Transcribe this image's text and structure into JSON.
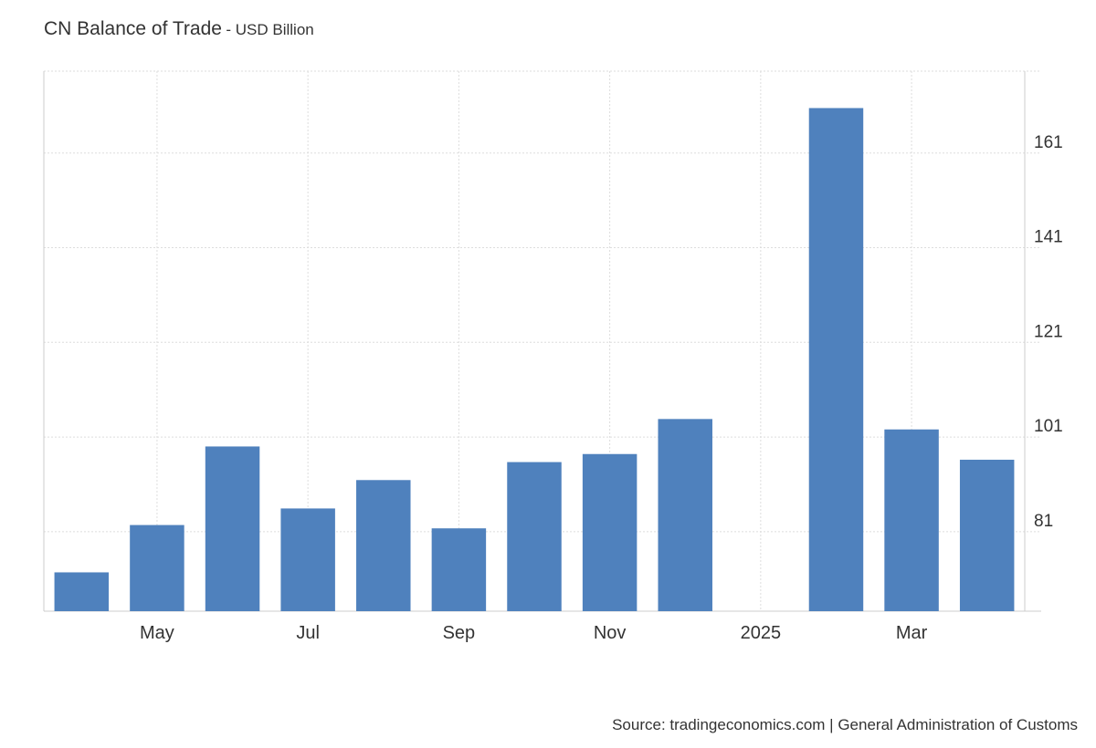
{
  "title": "CN Balance of Trade",
  "subtitle": "- USD Billion",
  "source": "Source: tradingeconomics.com | General Administration of Customs",
  "colors": {
    "bar": "#4f81bd",
    "grid": "#dddddd",
    "axis": "#cccccc",
    "text": "#333333"
  },
  "chart_data": {
    "type": "bar",
    "categories": [
      "Apr 2024",
      "May 2024",
      "Jun 2024",
      "Jul 2024",
      "Aug 2024",
      "Sep 2024",
      "Oct 2024",
      "Nov 2024",
      "Dec 2024",
      "Jan 2025",
      "Feb 2025",
      "Mar 2025",
      "Apr 2025"
    ],
    "values": [
      72.4,
      82.4,
      99.0,
      85.9,
      91.9,
      81.7,
      95.7,
      97.4,
      104.8,
      null,
      170.5,
      102.6,
      96.2
    ],
    "x_tick_labels": [
      {
        "category": "May 2024",
        "label": "May"
      },
      {
        "category": "Jul 2024",
        "label": "Jul"
      },
      {
        "category": "Sep 2024",
        "label": "Sep"
      },
      {
        "category": "Nov 2024",
        "label": "Nov"
      },
      {
        "category": "Jan 2025",
        "label": "2025"
      },
      {
        "category": "Mar 2025",
        "label": "Mar"
      }
    ],
    "yticks": [
      81,
      101,
      121,
      141,
      161
    ],
    "ylim": [
      64.2,
      178.3
    ],
    "yaxis_position": "right",
    "grid": true,
    "legend": "none"
  }
}
